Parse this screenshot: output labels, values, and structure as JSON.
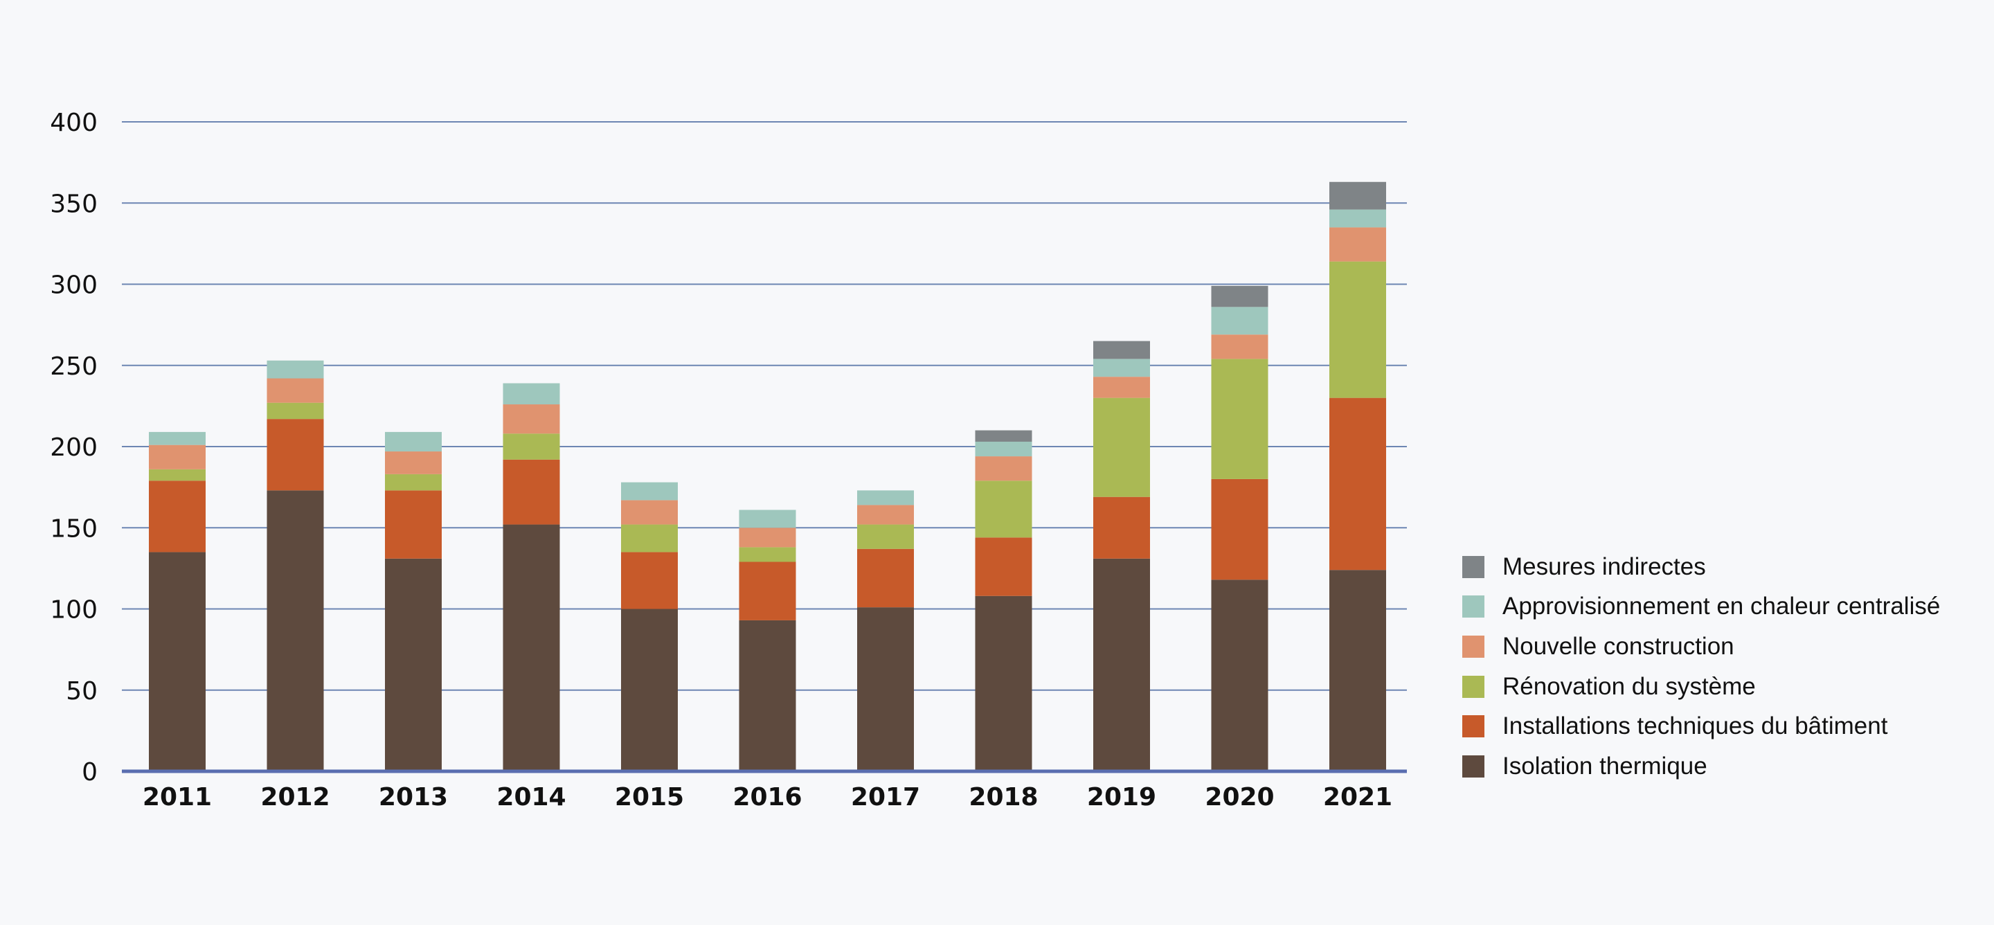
{
  "colors": {
    "background": "#f7f8fa",
    "gridline": "#6d86b3",
    "axis": "#5a6eb0",
    "text": "#111111"
  },
  "chart_data": {
    "type": "bar",
    "stacked": true,
    "title": "",
    "xlabel": "",
    "ylabel": "",
    "categories": [
      "2011",
      "2012",
      "2013",
      "2014",
      "2015",
      "2016",
      "2017",
      "2018",
      "2019",
      "2020",
      "2021"
    ],
    "ylim": [
      0,
      400
    ],
    "yticks": [
      0,
      50,
      100,
      150,
      200,
      250,
      300,
      350,
      400
    ],
    "grid": true,
    "legend_position": "right",
    "series": [
      {
        "name": "Isolation thermique",
        "color": "#5e4a3e",
        "values": [
          135,
          173,
          131,
          152,
          100,
          93,
          101,
          108,
          131,
          118,
          124
        ]
      },
      {
        "name": "Installations techniques du bâtiment",
        "color": "#c75a2a",
        "values": [
          44,
          44,
          42,
          40,
          35,
          36,
          36,
          36,
          38,
          62,
          106
        ]
      },
      {
        "name": "Rénovation du système",
        "color": "#aab954",
        "values": [
          7,
          10,
          10,
          16,
          17,
          9,
          15,
          35,
          61,
          74,
          84
        ]
      },
      {
        "name": "Nouvelle construction",
        "color": "#e0936f",
        "values": [
          15,
          15,
          14,
          18,
          15,
          12,
          12,
          15,
          13,
          15,
          21
        ]
      },
      {
        "name": "Approvisionnement en chaleur centralisé",
        "color": "#9ec7bd",
        "values": [
          8,
          11,
          12,
          13,
          11,
          11,
          9,
          9,
          11,
          17,
          11
        ]
      },
      {
        "name": "Mesures indirectes",
        "color": "#7f8487",
        "values": [
          0,
          0,
          0,
          0,
          0,
          0,
          0,
          7,
          11,
          13,
          17
        ]
      }
    ]
  }
}
